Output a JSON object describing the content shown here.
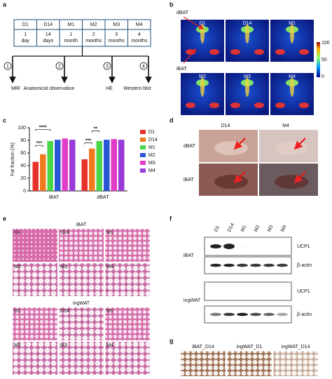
{
  "panel_labels": [
    "a",
    "b",
    "c",
    "d",
    "e",
    "f",
    "g"
  ],
  "timeline": {
    "stages": [
      {
        "name": "D1",
        "period": [
          "1",
          "day"
        ]
      },
      {
        "name": "D14",
        "period": [
          "14",
          "days"
        ]
      },
      {
        "name": "M1",
        "period": [
          "1",
          "month"
        ]
      },
      {
        "name": "M2",
        "period": [
          "2",
          "months"
        ]
      },
      {
        "name": "M3",
        "period": [
          "3",
          "months"
        ]
      },
      {
        "name": "M4",
        "period": [
          "4",
          "months"
        ]
      }
    ],
    "assays": [
      {
        "step": "1",
        "label": "MRI"
      },
      {
        "step": "2",
        "label": "Anatomical observation"
      },
      {
        "step": "3",
        "label": "HE"
      },
      {
        "step": "4",
        "label": "Western blot"
      }
    ]
  },
  "mri": {
    "regions": [
      "dBAT",
      "iBAT"
    ],
    "images": [
      "D1",
      "D14",
      "M1",
      "M2",
      "M3",
      "M4"
    ],
    "colorbar_ticks": [
      "100",
      "50",
      "0"
    ]
  },
  "chart_data": {
    "type": "bar",
    "ylabel": "Fat fraction (%)",
    "categories": [
      "iBAT",
      "dBAT"
    ],
    "series": [
      {
        "name": "D1",
        "color": "#e8312a",
        "values": [
          46,
          50
        ]
      },
      {
        "name": "D14",
        "color": "#f07b1e",
        "values": [
          58,
          67
        ]
      },
      {
        "name": "M1",
        "color": "#49d64a",
        "values": [
          79,
          79
        ]
      },
      {
        "name": "M2",
        "color": "#2b57d6",
        "values": [
          81,
          81
        ]
      },
      {
        "name": "M3",
        "color": "#e03cc8",
        "values": [
          83,
          82
        ]
      },
      {
        "name": "M4",
        "color": "#9b3ad6",
        "values": [
          81,
          81
        ]
      }
    ],
    "ylim": [
      0,
      100
    ],
    "yticks": [
      0,
      20,
      40,
      60,
      80,
      100
    ],
    "significance": [
      "***",
      "****",
      "***",
      "**"
    ]
  },
  "anatomy": {
    "columns": [
      "D14",
      "M4"
    ],
    "rows": [
      "dBAT",
      "iBAT"
    ]
  },
  "histology": {
    "groups": [
      {
        "name": "iBAT",
        "images": [
          "D1",
          "D14",
          "M1",
          "M2",
          "M3",
          "M4"
        ]
      },
      {
        "name": "ingWAT",
        "images": [
          "D1",
          "D14",
          "M1",
          "M2",
          "M3",
          "M4"
        ]
      }
    ]
  },
  "western": {
    "lanes": [
      "D1",
      "D14",
      "M1",
      "M2",
      "M3",
      "M4"
    ],
    "blocks": [
      {
        "tissue": "iBAT",
        "bands": [
          "UCP1",
          "β-actin"
        ]
      },
      {
        "tissue": "ingWAT",
        "bands": [
          "UCP1",
          "β-actin"
        ]
      }
    ]
  },
  "staining": {
    "images": [
      "iBAT_D14",
      "ingWAT_D1",
      "ingWAT_D14"
    ]
  }
}
